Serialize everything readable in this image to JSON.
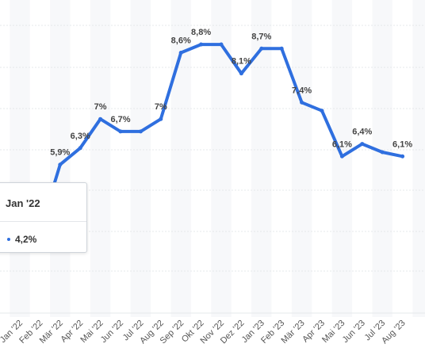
{
  "chart_data": {
    "type": "line",
    "categories": [
      "Jan '22",
      "Feb '22",
      "Mär '22",
      "Apr '22",
      "Mai '22",
      "Jun '22",
      "Jul '22",
      "Aug '22",
      "Sep '22",
      "Okt '22",
      "Nov '22",
      "Dez '22",
      "Jan '23",
      "Feb '23",
      "Mär '23",
      "Apr '23",
      "Mai '23",
      "Jun '23",
      "Jul '23",
      "Aug '23"
    ],
    "values": [
      4.2,
      4.3,
      5.9,
      6.3,
      7.0,
      6.7,
      6.7,
      7.0,
      8.6,
      8.8,
      8.8,
      8.1,
      8.7,
      8.7,
      7.4,
      7.2,
      6.1,
      6.4,
      6.2,
      6.1
    ],
    "data_labels": [
      "",
      "",
      "5,9%",
      "6,3%",
      "7%",
      "6,7%",
      "",
      "7%",
      "8,6%",
      "8,8%",
      "",
      "8,1%",
      "8,7%",
      "",
      "7,4%",
      "",
      "6,1%",
      "6,4%",
      "",
      "6,1%"
    ],
    "grid": true,
    "line_color": "#2f6fdf"
  },
  "tooltip": {
    "title": "Jan '22",
    "value": "4,2%"
  }
}
